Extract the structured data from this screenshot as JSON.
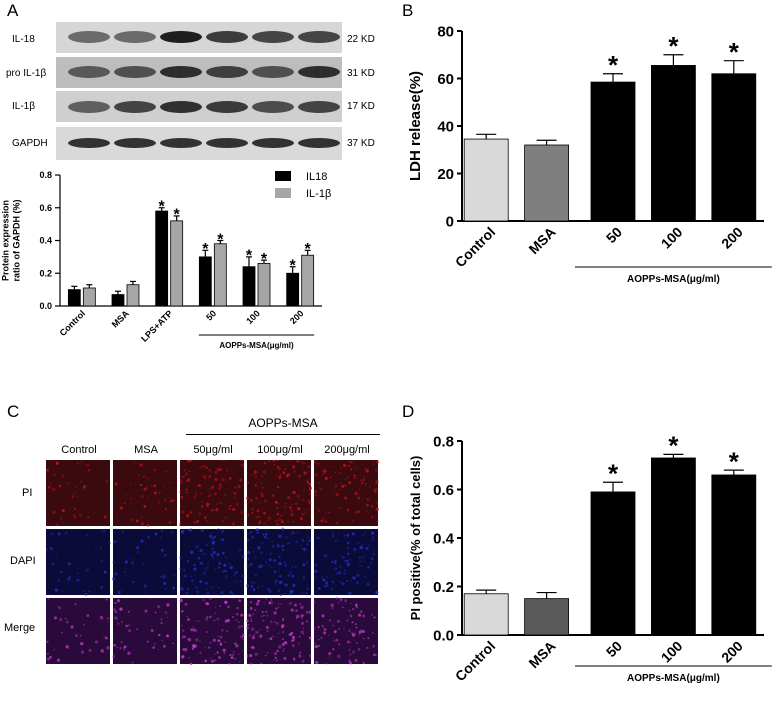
{
  "panels": {
    "A": "A",
    "B": "B",
    "C": "C",
    "D": "D"
  },
  "western_blot": {
    "rows": [
      {
        "label": "IL-18",
        "kd": "22 KD"
      },
      {
        "label": "pro IL-1β",
        "kd": "31 KD"
      },
      {
        "label": "IL-1β",
        "kd": "17 KD"
      },
      {
        "label": "GAPDH",
        "kd": "37 KD"
      }
    ]
  },
  "microscopy": {
    "group_label": "AOPPs-MSA",
    "columns": [
      "Control",
      "MSA",
      "50μg/ml",
      "100μg/ml",
      "200μg/ml"
    ],
    "rows": [
      "PI",
      "DAPI",
      "Merge"
    ],
    "colors": {
      "PI": "#3a0a0e",
      "DAPI": "#0b0b3a",
      "Merge": "#2a0a3a"
    }
  },
  "significance_marker": "*",
  "chart_data": [
    {
      "id": "A",
      "type": "bar",
      "categories": [
        "Control",
        "MSA",
        "LPS+ATP",
        "50",
        "100",
        "200"
      ],
      "ylabel": "Protein expression ratio of GAPDH (%)",
      "xlabel": "",
      "group_label": "AOPPs-MSA(μg/ml)",
      "ylim": [
        0,
        0.8
      ],
      "yticks": [
        "0.0",
        "0.2",
        "0.4",
        "0.6",
        "0.8"
      ],
      "legend_position": "top-right",
      "series": [
        {
          "name": "IL18",
          "color": "#000000",
          "values": [
            0.1,
            0.07,
            0.58,
            0.3,
            0.24,
            0.2
          ],
          "errors": [
            0.02,
            0.02,
            0.02,
            0.04,
            0.06,
            0.04
          ],
          "significant": [
            false,
            false,
            true,
            true,
            true,
            true
          ]
        },
        {
          "name": "IL-1β",
          "color": "#a6a6a6",
          "values": [
            0.11,
            0.13,
            0.52,
            0.38,
            0.26,
            0.31
          ],
          "errors": [
            0.02,
            0.02,
            0.03,
            0.02,
            0.02,
            0.03
          ],
          "significant": [
            false,
            false,
            true,
            true,
            true,
            true
          ]
        }
      ]
    },
    {
      "id": "B",
      "type": "bar",
      "categories": [
        "Control",
        "MSA",
        "50",
        "100",
        "200"
      ],
      "ylabel": "LDH release(%)",
      "xlabel": "",
      "group_label": "AOPPs-MSA(μg/ml)",
      "ylim": [
        0,
        80
      ],
      "yticks": [
        "0",
        "20",
        "40",
        "60",
        "80"
      ],
      "colors": [
        "#d9d9d9",
        "#7f7f7f",
        "#000000",
        "#000000",
        "#000000"
      ],
      "values": [
        34.5,
        32,
        58.5,
        65.5,
        62
      ],
      "errors": [
        2,
        2,
        3.5,
        4.5,
        5.5
      ],
      "significant": [
        false,
        false,
        true,
        true,
        true
      ]
    },
    {
      "id": "D",
      "type": "bar",
      "categories": [
        "Control",
        "MSA",
        "50",
        "100",
        "200"
      ],
      "ylabel": "PI positive(% of total cells)",
      "xlabel": "",
      "group_label": "AOPPs-MSA(μg/ml)",
      "ylim": [
        0,
        0.8
      ],
      "yticks": [
        "0.0",
        "0.2",
        "0.4",
        "0.6",
        "0.8"
      ],
      "colors": [
        "#d9d9d9",
        "#595959",
        "#000000",
        "#000000",
        "#000000"
      ],
      "values": [
        0.17,
        0.15,
        0.59,
        0.73,
        0.66
      ],
      "errors": [
        0.015,
        0.025,
        0.04,
        0.015,
        0.02
      ],
      "significant": [
        false,
        false,
        true,
        true,
        true
      ]
    }
  ]
}
